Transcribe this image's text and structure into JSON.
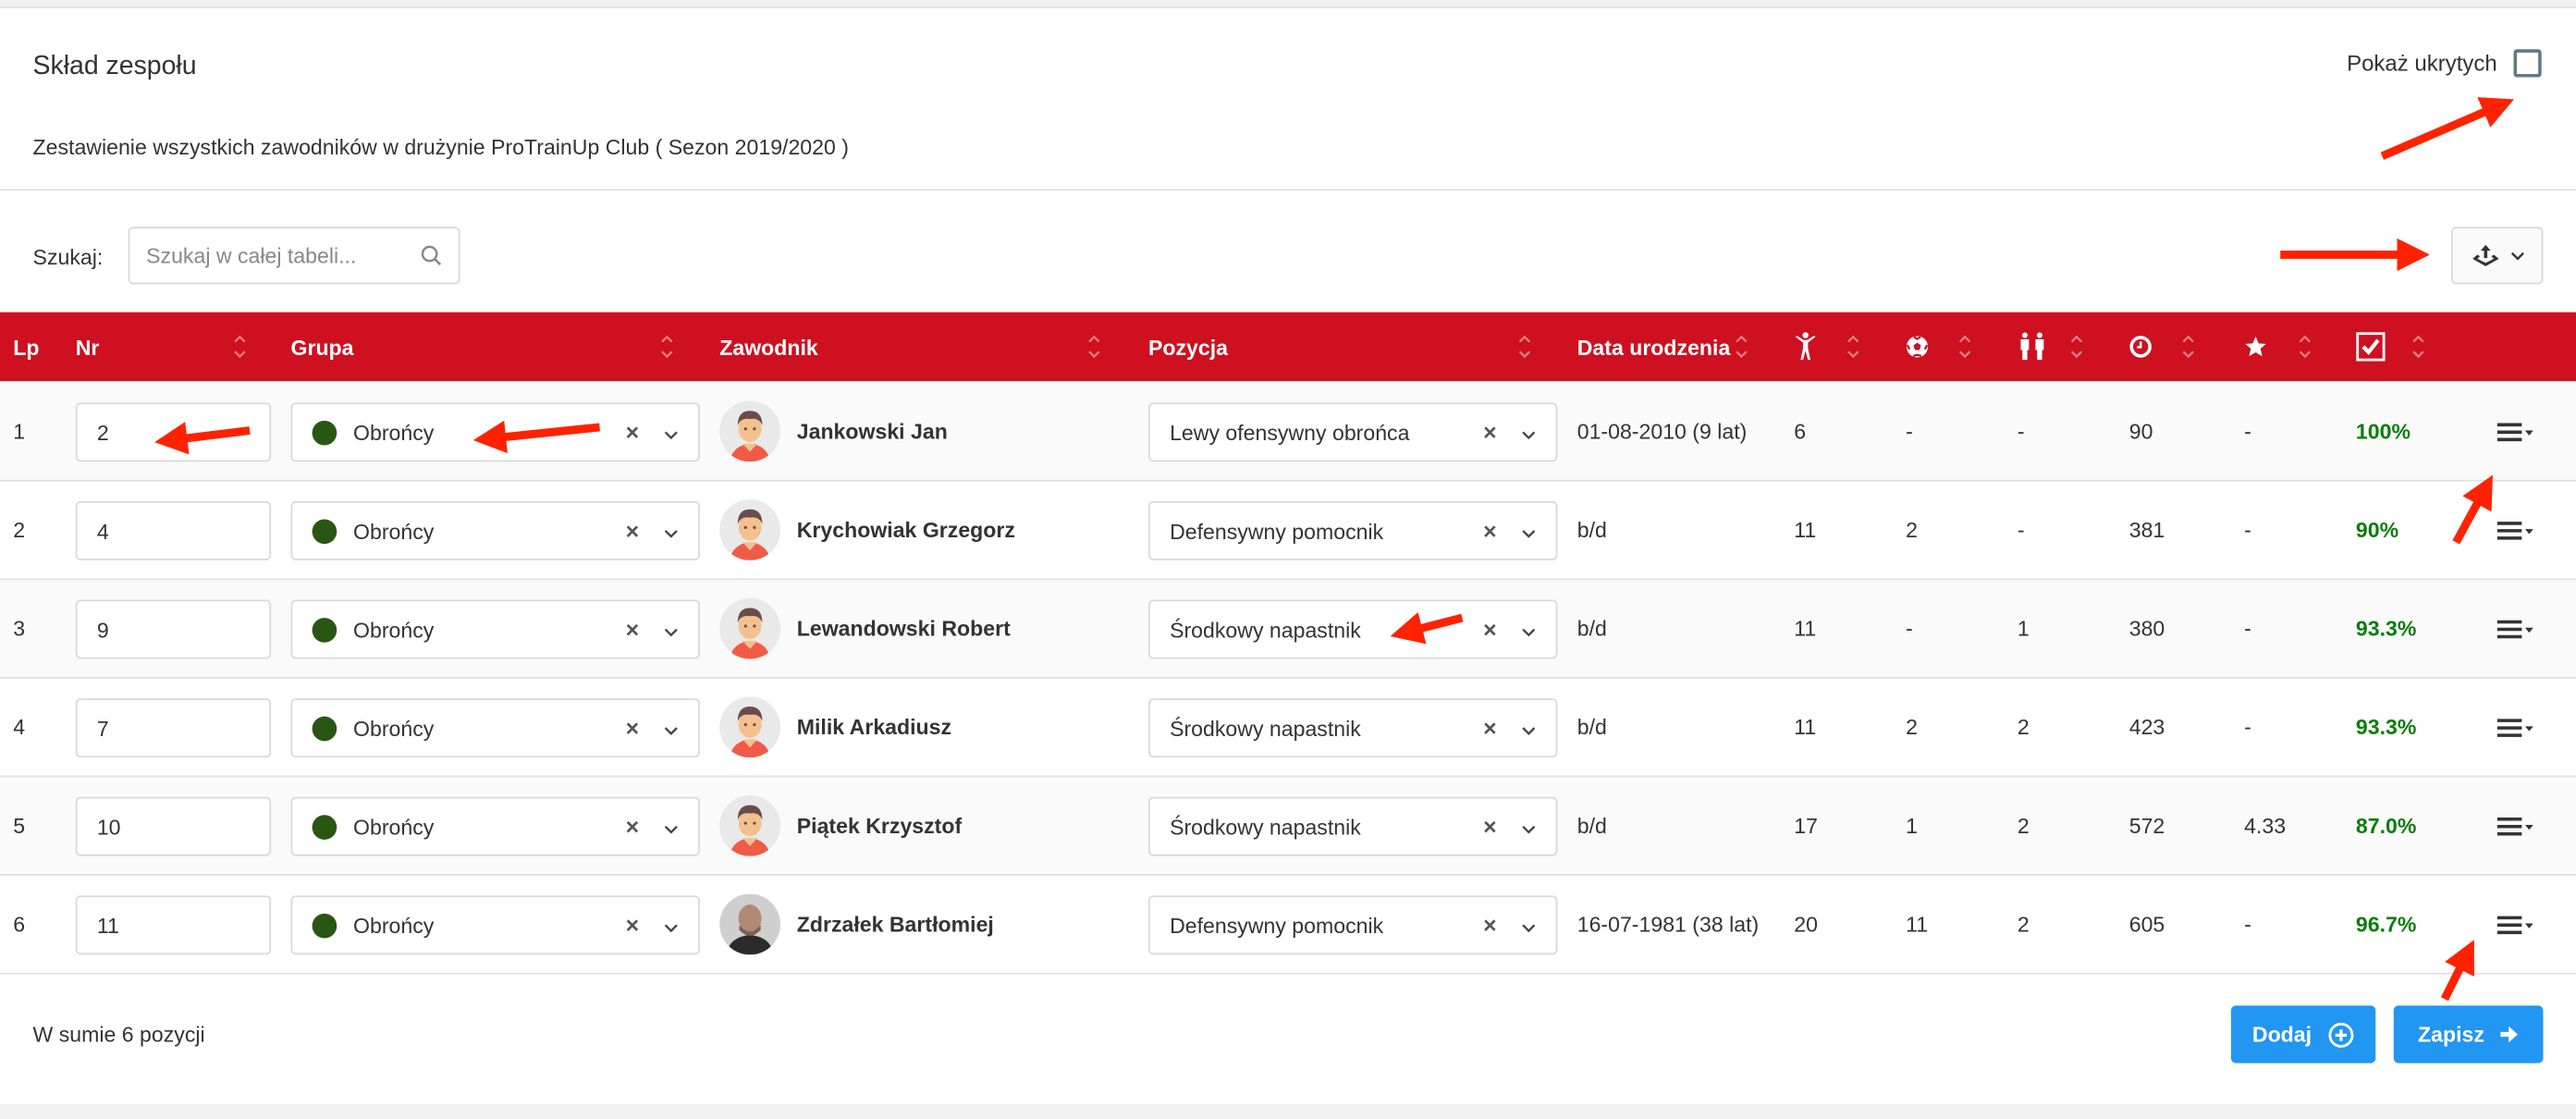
{
  "header": {
    "title": "Skład zespołu",
    "subtitle": "Zestawienie wszystkich zawodników w drużynie ProTrainUp Club ( Sezon 2019/2020 )",
    "show_hidden_label": "Pokaż ukrytych",
    "show_hidden_checked": false
  },
  "search": {
    "label": "Szukaj:",
    "placeholder": "Szukaj w całej tabeli..."
  },
  "export": {
    "icon": "export-tray-icon"
  },
  "table": {
    "columns": [
      {
        "key": "lp",
        "label": "Lp"
      },
      {
        "key": "nr",
        "label": "Nr"
      },
      {
        "key": "grupa",
        "label": "Grupa"
      },
      {
        "key": "zawodnik",
        "label": "Zawodnik"
      },
      {
        "key": "pozycja",
        "label": "Pozycja"
      },
      {
        "key": "data",
        "label": "Data urodzenia"
      },
      {
        "key": "appearances",
        "icon": "person-arms-up-icon"
      },
      {
        "key": "goals",
        "icon": "soccer-ball-icon"
      },
      {
        "key": "team",
        "icon": "two-people-icon"
      },
      {
        "key": "minutes",
        "icon": "clock-icon"
      },
      {
        "key": "rating",
        "icon": "star-icon"
      },
      {
        "key": "attendance",
        "icon": "checkbox-checked-icon"
      }
    ],
    "rows": [
      {
        "lp": "1",
        "nr": "2",
        "grupa": "Obrońcy",
        "zawodnik": "Jankowski Jan",
        "pozycja": "Lewy ofensywny obrońca",
        "data": "01-08-2010 (9 lat)",
        "appearances": "6",
        "goals": "-",
        "team": "-",
        "minutes": "90",
        "rating": "-",
        "attendance": "100%",
        "avatar": "cartoon"
      },
      {
        "lp": "2",
        "nr": "4",
        "grupa": "Obrońcy",
        "zawodnik": "Krychowiak Grzegorz",
        "pozycja": "Defensywny pomocnik",
        "data": "b/d",
        "appearances": "11",
        "goals": "2",
        "team": "-",
        "minutes": "381",
        "rating": "-",
        "attendance": "90%",
        "avatar": "cartoon"
      },
      {
        "lp": "3",
        "nr": "9",
        "grupa": "Obrońcy",
        "zawodnik": "Lewandowski Robert",
        "pozycja": "Środkowy napastnik",
        "data": "b/d",
        "appearances": "11",
        "goals": "-",
        "team": "1",
        "minutes": "380",
        "rating": "-",
        "attendance": "93.3%",
        "avatar": "cartoon"
      },
      {
        "lp": "4",
        "nr": "7",
        "grupa": "Obrońcy",
        "zawodnik": "Milik Arkadiusz",
        "pozycja": "Środkowy napastnik",
        "data": "b/d",
        "appearances": "11",
        "goals": "2",
        "team": "2",
        "minutes": "423",
        "rating": "-",
        "attendance": "93.3%",
        "avatar": "cartoon"
      },
      {
        "lp": "5",
        "nr": "10",
        "grupa": "Obrońcy",
        "zawodnik": "Piątek Krzysztof",
        "pozycja": "Środkowy napastnik",
        "data": "b/d",
        "appearances": "17",
        "goals": "1",
        "team": "2",
        "minutes": "572",
        "rating": "4.33",
        "attendance": "87.0%",
        "avatar": "cartoon"
      },
      {
        "lp": "6",
        "nr": "11",
        "grupa": "Obrońcy",
        "zawodnik": "Zdrzałek Bartłomiej",
        "pozycja": "Defensywny pomocnik",
        "data": "16-07-1981 (38 lat)",
        "appearances": "20",
        "goals": "11",
        "team": "2",
        "minutes": "605",
        "rating": "-",
        "attendance": "96.7%",
        "avatar": "photo"
      }
    ]
  },
  "footer": {
    "total": "W sumie 6 pozycji",
    "add_label": "Dodaj",
    "save_label": "Zapisz"
  },
  "colors": {
    "header_bg": "#CE1020",
    "button": "#2196f3",
    "group_dot": "#2a5614",
    "percent": "#0a7d0a",
    "annotation_arrow": "#ff2200"
  }
}
